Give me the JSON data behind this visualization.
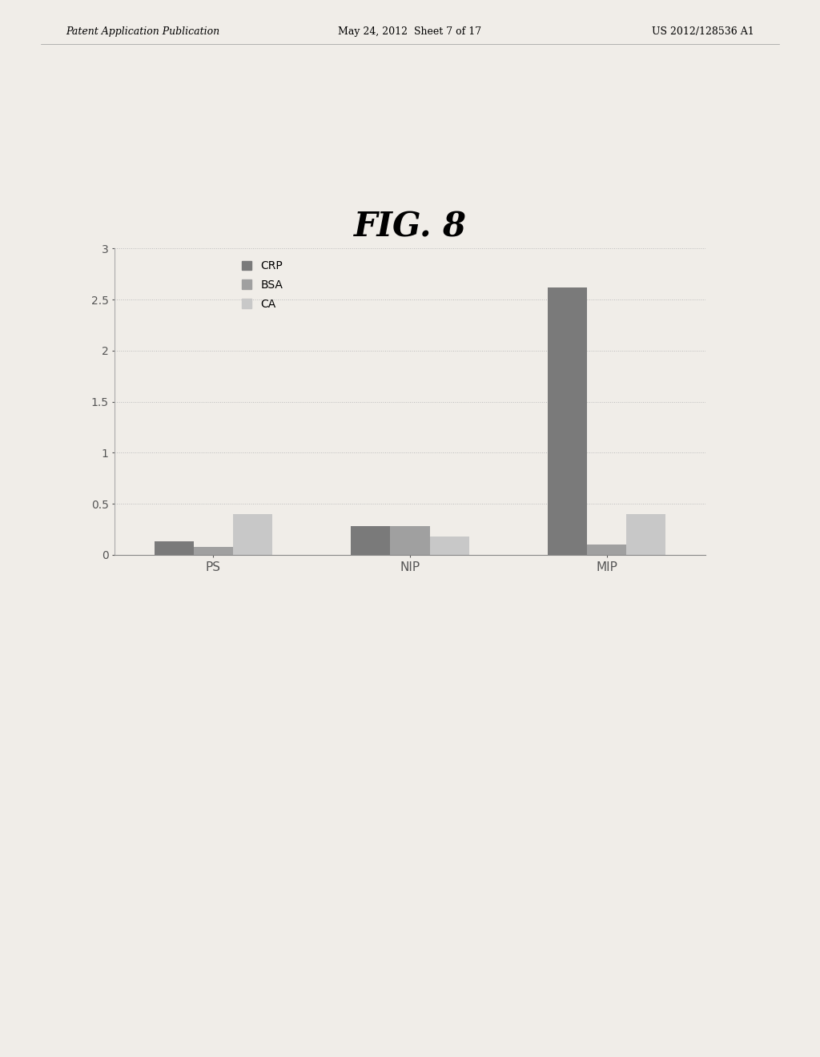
{
  "title": "FIG. 8",
  "categories": [
    "PS",
    "NIP",
    "MIP"
  ],
  "series": {
    "CRP": [
      0.13,
      0.28,
      2.62
    ],
    "BSA": [
      0.08,
      0.28,
      0.1
    ],
    "CA": [
      0.4,
      0.18,
      0.4
    ]
  },
  "series_order": [
    "CRP",
    "BSA",
    "CA"
  ],
  "colors": {
    "CRP": "#7a7a7a",
    "BSA": "#a0a0a0",
    "CA": "#c8c8c8"
  },
  "ylim": [
    0,
    3
  ],
  "yticks": [
    0,
    0.5,
    1,
    1.5,
    2,
    2.5,
    3
  ],
  "background_color": "#f0ede8",
  "grid_color": "#bbbbbb",
  "header_left": "Patent Application Publication",
  "header_center": "May 24, 2012  Sheet 7 of 17",
  "header_right": "US 2012/128536 A1"
}
